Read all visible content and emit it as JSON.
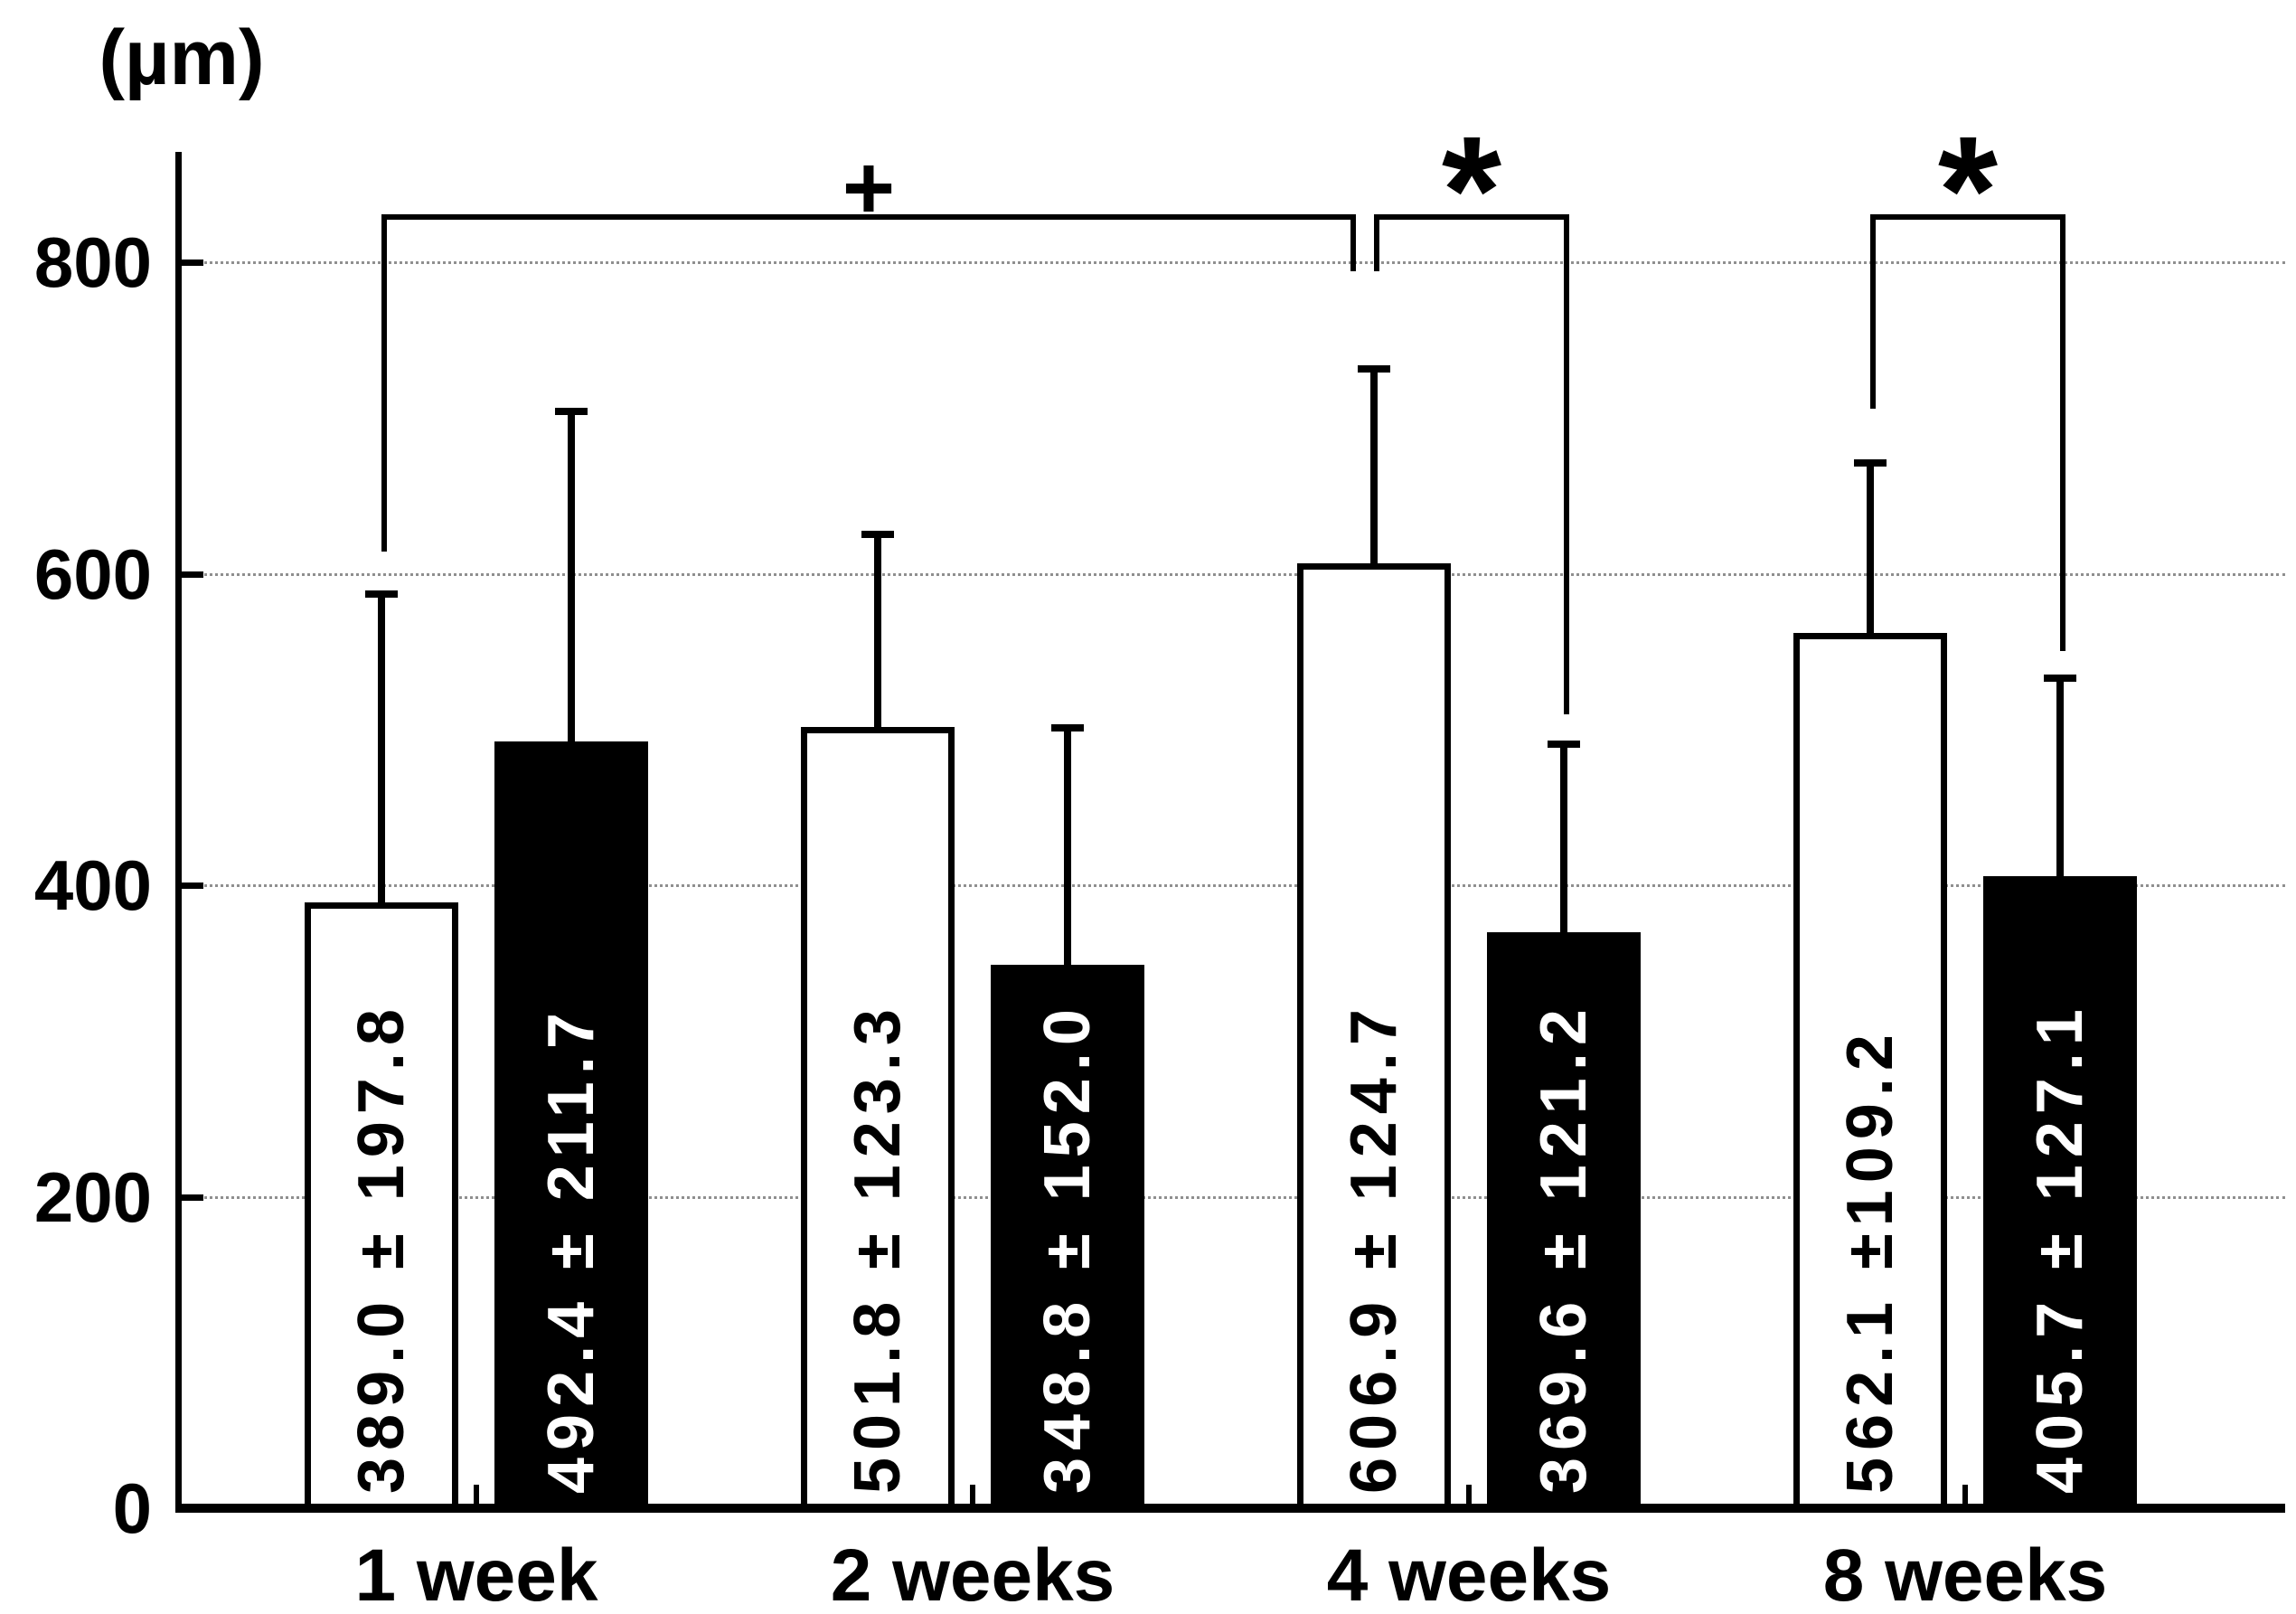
{
  "chart_data": {
    "type": "bar",
    "title": "",
    "xlabel": "",
    "ylabel": "(µm)",
    "categories": [
      "1 week",
      "2 weeks",
      "4 weeks",
      "8 weeks"
    ],
    "yticks": [
      800,
      600,
      400,
      200,
      0
    ],
    "ylim": [
      0,
      870
    ],
    "grid": "horizontal-dotted",
    "legend": "none",
    "error_bars": "+SD",
    "series": [
      {
        "name": "open-bars",
        "fill": "white",
        "values": [
          389.0,
          501.8,
          606.9,
          562.1
        ],
        "sd": [
          197.8,
          123.3,
          124.7,
          109.2
        ],
        "bar_labels": [
          "389.0 ± 197.8",
          "501.8 ± 123.3",
          "606.9 ± 124.7",
          "562.1 ±109.2"
        ]
      },
      {
        "name": "filled-bars",
        "fill": "black",
        "values": [
          492.4,
          348.8,
          369.6,
          405.7
        ],
        "sd": [
          211.7,
          152.0,
          121.2,
          127.1
        ],
        "bar_labels": [
          "492.4 ± 211.7",
          "348.8 ± 152.0",
          "369.6 ± 121.2",
          "405.7 ± 127.1"
        ]
      }
    ],
    "annotations": [
      {
        "symbol": "+",
        "from": {
          "category": 0,
          "series": 0
        },
        "to": {
          "category": 2,
          "series": 0
        }
      },
      {
        "symbol": "*",
        "from": {
          "category": 2,
          "series": 0
        },
        "to": {
          "category": 2,
          "series": 1
        }
      },
      {
        "symbol": "*",
        "from": {
          "category": 3,
          "series": 0
        },
        "to": {
          "category": 3,
          "series": 1
        }
      }
    ]
  }
}
